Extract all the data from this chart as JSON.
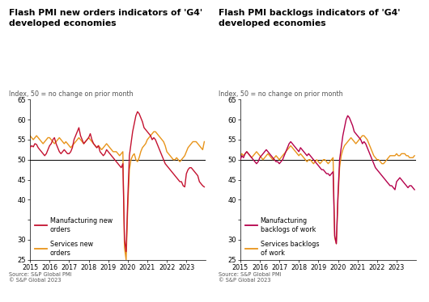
{
  "title1": "Flash PMI new orders indicators of 'G4'\ndeveloped economies",
  "title2": "Flash PMI backlogs indicators of 'G4'\ndeveloped economies",
  "subtitle": "Index, 50 = no change on prior month",
  "source": "Source: S&P Global PMI\n© S&P Global 2023",
  "ylim": [
    25,
    65
  ],
  "yticks": [
    25,
    30,
    35,
    40,
    45,
    50,
    55,
    60,
    65
  ],
  "ytick_labels": [
    "25",
    "30",
    "",
    "40",
    "45",
    "50",
    "55",
    "60",
    "65"
  ],
  "hline": 50,
  "legend1_line1": "Manufacturing new\norders",
  "legend1_line2": "Services new\norders",
  "legend2_line1": "Manufacturing\nbacklogs of work",
  "legend2_line2": "Services backlogs\nof work",
  "color_manuf": "#C41230",
  "color_services": "#E8941A",
  "color_manuf2": "#B5004B",
  "color_services2": "#E8941A",
  "manuf_new_orders": [
    53.0,
    53.5,
    53.2,
    54.0,
    53.8,
    53.0,
    52.5,
    52.0,
    51.5,
    51.0,
    51.5,
    52.5,
    53.5,
    54.0,
    55.0,
    55.5,
    54.0,
    53.0,
    52.0,
    51.5,
    52.0,
    52.5,
    52.0,
    51.5,
    51.5,
    52.0,
    53.0,
    55.0,
    56.0,
    57.0,
    58.0,
    56.0,
    55.0,
    54.0,
    54.5,
    55.0,
    55.5,
    56.5,
    55.0,
    54.0,
    53.5,
    53.0,
    53.5,
    52.0,
    51.5,
    51.0,
    51.5,
    52.5,
    52.0,
    51.5,
    51.0,
    50.5,
    50.0,
    49.5,
    49.0,
    48.5,
    48.0,
    49.0,
    30.0,
    27.0,
    40.0,
    51.0,
    54.0,
    57.0,
    59.0,
    61.0,
    62.0,
    61.5,
    60.5,
    59.5,
    58.0,
    57.5,
    57.0,
    56.5,
    56.0,
    55.0,
    55.5,
    55.0,
    54.0,
    53.0,
    52.0,
    51.0,
    50.0,
    49.0,
    48.5,
    48.0,
    47.5,
    47.0,
    46.5,
    46.0,
    45.5,
    45.0,
    44.5,
    44.5,
    43.5,
    43.2,
    46.5,
    47.5,
    48.0,
    48.0,
    47.5,
    47.0,
    46.5,
    46.0,
    44.5,
    44.0,
    43.5,
    43.2
  ],
  "services_new_orders": [
    56.0,
    55.5,
    55.0,
    55.5,
    56.0,
    55.5,
    55.0,
    54.5,
    54.0,
    54.5,
    55.0,
    55.5,
    55.5,
    55.0,
    54.5,
    54.0,
    54.5,
    55.0,
    55.5,
    55.0,
    54.5,
    54.0,
    54.5,
    54.0,
    53.5,
    53.0,
    53.5,
    54.0,
    54.5,
    55.0,
    55.5,
    55.0,
    54.5,
    54.0,
    54.5,
    55.0,
    55.5,
    55.0,
    54.5,
    54.0,
    53.5,
    53.0,
    53.5,
    53.0,
    52.5,
    53.0,
    53.5,
    54.0,
    53.5,
    53.0,
    52.5,
    52.0,
    52.0,
    52.0,
    51.5,
    51.0,
    51.5,
    52.0,
    28.0,
    25.0,
    38.0,
    47.5,
    50.0,
    51.0,
    51.5,
    50.0,
    49.5,
    50.5,
    52.0,
    53.0,
    53.5,
    54.0,
    55.0,
    55.5,
    56.0,
    56.5,
    57.0,
    57.0,
    56.5,
    56.0,
    55.5,
    55.0,
    54.5,
    53.5,
    52.0,
    51.5,
    51.0,
    50.5,
    50.0,
    50.0,
    50.5,
    50.0,
    49.5,
    50.0,
    50.5,
    51.0,
    52.0,
    53.0,
    53.5,
    54.0,
    54.5,
    54.5,
    54.5,
    54.0,
    53.5,
    53.0,
    52.5,
    54.5
  ],
  "manuf_backlogs": [
    50.0,
    51.0,
    50.5,
    51.5,
    52.0,
    51.5,
    51.0,
    50.5,
    50.0,
    49.5,
    49.0,
    49.5,
    50.5,
    51.0,
    51.5,
    52.0,
    52.5,
    52.0,
    51.5,
    51.0,
    50.5,
    50.0,
    49.5,
    49.5,
    49.0,
    49.5,
    50.0,
    51.0,
    52.0,
    53.0,
    54.0,
    54.5,
    54.0,
    53.5,
    53.0,
    52.5,
    52.0,
    53.0,
    52.5,
    52.0,
    51.5,
    51.0,
    51.5,
    51.0,
    50.5,
    50.0,
    49.5,
    49.0,
    48.5,
    48.0,
    47.5,
    47.5,
    47.0,
    46.5,
    46.5,
    46.0,
    46.5,
    47.0,
    31.0,
    29.0,
    41.0,
    50.0,
    53.0,
    56.0,
    58.0,
    60.0,
    61.0,
    60.5,
    59.5,
    58.5,
    57.0,
    56.5,
    56.0,
    55.5,
    55.0,
    54.0,
    54.5,
    54.0,
    53.0,
    52.0,
    51.0,
    50.0,
    49.0,
    48.0,
    47.5,
    47.0,
    46.5,
    46.0,
    45.5,
    45.0,
    44.5,
    44.0,
    43.5,
    43.5,
    43.0,
    42.5,
    44.5,
    45.0,
    45.5,
    45.0,
    44.5,
    44.0,
    43.5,
    43.0,
    43.5,
    43.5,
    43.0,
    42.5
  ],
  "services_backlogs": [
    51.0,
    51.5,
    51.0,
    51.5,
    52.0,
    51.5,
    51.0,
    50.5,
    51.0,
    51.5,
    52.0,
    51.5,
    51.0,
    50.5,
    50.0,
    50.5,
    51.0,
    51.5,
    51.0,
    50.5,
    50.0,
    50.5,
    51.0,
    50.5,
    50.0,
    50.5,
    51.0,
    51.5,
    52.0,
    52.5,
    53.0,
    53.5,
    53.0,
    52.5,
    52.0,
    51.5,
    51.0,
    51.5,
    51.0,
    50.5,
    50.0,
    49.5,
    50.0,
    50.0,
    49.5,
    49.0,
    49.5,
    50.0,
    49.5,
    49.0,
    49.5,
    50.0,
    50.0,
    49.5,
    49.0,
    49.5,
    50.0,
    50.5,
    30.5,
    29.0,
    40.0,
    48.0,
    51.0,
    52.5,
    53.5,
    54.0,
    54.5,
    55.0,
    55.5,
    55.0,
    54.5,
    54.0,
    54.5,
    55.0,
    55.5,
    56.0,
    56.0,
    55.5,
    55.0,
    54.0,
    53.0,
    52.0,
    51.0,
    50.5,
    50.0,
    50.0,
    49.5,
    49.0,
    49.0,
    49.5,
    50.0,
    50.5,
    51.0,
    51.0,
    51.0,
    51.0,
    51.5,
    51.0,
    51.0,
    51.5,
    51.5,
    51.5,
    51.0,
    51.0,
    50.5,
    50.5,
    50.5,
    51.0
  ]
}
